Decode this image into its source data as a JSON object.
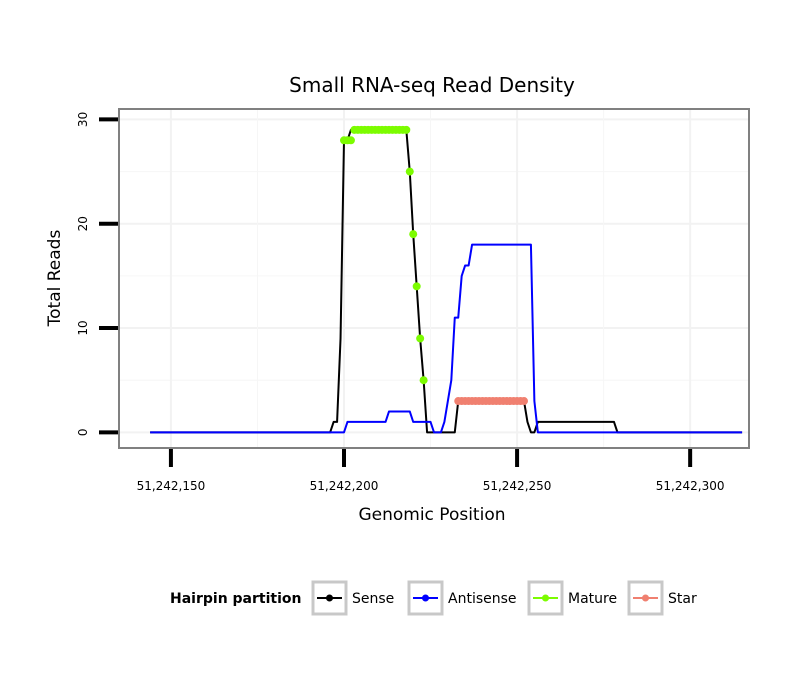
{
  "chart_data": {
    "type": "line",
    "title": "Small RNA-seq Read Density",
    "xlabel": "Genomic Position",
    "ylabel": "Total Reads",
    "xlim": [
      51242135,
      51242317
    ],
    "ylim": [
      -1.5,
      31
    ],
    "xticks": [
      51242150,
      51242200,
      51242250,
      51242300
    ],
    "xtick_labels": [
      "51,242,150",
      "51,242,200",
      "51,242,250",
      "51,242,300"
    ],
    "yticks": [
      0,
      10,
      20,
      30
    ],
    "ytick_labels": [
      "0",
      "10",
      "20",
      "30"
    ],
    "grid": true,
    "legend": {
      "title": "Hairpin partition",
      "position": "bottom",
      "entries": [
        "Sense",
        "Antisense",
        "Mature",
        "Star"
      ]
    },
    "series": [
      {
        "name": "Sense",
        "color": "#000000",
        "marker": "line",
        "points": [
          [
            51242144,
            0
          ],
          [
            51242196,
            0
          ],
          [
            51242197,
            1
          ],
          [
            51242198,
            1
          ],
          [
            51242199,
            9
          ],
          [
            51242200,
            28
          ],
          [
            51242201,
            28
          ],
          [
            51242202,
            29
          ],
          [
            51242218,
            29
          ],
          [
            51242219,
            25
          ],
          [
            51242220,
            19
          ],
          [
            51242221,
            14
          ],
          [
            51242222,
            9
          ],
          [
            51242223,
            5
          ],
          [
            51242224,
            0
          ],
          [
            51242232,
            0
          ],
          [
            51242233,
            3
          ],
          [
            51242252,
            3
          ],
          [
            51242253,
            1
          ],
          [
            51242254,
            0
          ],
          [
            51242255,
            0
          ],
          [
            51242256,
            1
          ],
          [
            51242278,
            1
          ],
          [
            51242279,
            0
          ],
          [
            51242315,
            0
          ]
        ]
      },
      {
        "name": "Antisense",
        "color": "#0000ff",
        "marker": "line",
        "points": [
          [
            51242144,
            0
          ],
          [
            51242200,
            0
          ],
          [
            51242201,
            1
          ],
          [
            51242212,
            1
          ],
          [
            51242213,
            2
          ],
          [
            51242219,
            2
          ],
          [
            51242220,
            1
          ],
          [
            51242225,
            1
          ],
          [
            51242226,
            0
          ],
          [
            51242228,
            0
          ],
          [
            51242229,
            1
          ],
          [
            51242230,
            3
          ],
          [
            51242231,
            5
          ],
          [
            51242232,
            11
          ],
          [
            51242233,
            11
          ],
          [
            51242234,
            15
          ],
          [
            51242235,
            16
          ],
          [
            51242236,
            16
          ],
          [
            51242237,
            18
          ],
          [
            51242254,
            18
          ],
          [
            51242255,
            3
          ],
          [
            51242256,
            0
          ],
          [
            51242315,
            0
          ]
        ]
      },
      {
        "name": "Mature",
        "color": "#7cfc00",
        "marker": "point",
        "points": [
          [
            51242200,
            28
          ],
          [
            51242201,
            28
          ],
          [
            51242202,
            28
          ],
          [
            51242203,
            29
          ],
          [
            51242204,
            29
          ],
          [
            51242205,
            29
          ],
          [
            51242206,
            29
          ],
          [
            51242207,
            29
          ],
          [
            51242208,
            29
          ],
          [
            51242209,
            29
          ],
          [
            51242210,
            29
          ],
          [
            51242211,
            29
          ],
          [
            51242212,
            29
          ],
          [
            51242213,
            29
          ],
          [
            51242214,
            29
          ],
          [
            51242215,
            29
          ],
          [
            51242216,
            29
          ],
          [
            51242217,
            29
          ],
          [
            51242218,
            29
          ],
          [
            51242219,
            25
          ],
          [
            51242220,
            19
          ],
          [
            51242221,
            14
          ],
          [
            51242222,
            9
          ],
          [
            51242223,
            5
          ]
        ]
      },
      {
        "name": "Star",
        "color": "#f08070",
        "marker": "point",
        "points": [
          [
            51242233,
            3
          ],
          [
            51242234,
            3
          ],
          [
            51242235,
            3
          ],
          [
            51242236,
            3
          ],
          [
            51242237,
            3
          ],
          [
            51242238,
            3
          ],
          [
            51242239,
            3
          ],
          [
            51242240,
            3
          ],
          [
            51242241,
            3
          ],
          [
            51242242,
            3
          ],
          [
            51242243,
            3
          ],
          [
            51242244,
            3
          ],
          [
            51242245,
            3
          ],
          [
            51242246,
            3
          ],
          [
            51242247,
            3
          ],
          [
            51242248,
            3
          ],
          [
            51242249,
            3
          ],
          [
            51242250,
            3
          ],
          [
            51242251,
            3
          ],
          [
            51242252,
            3
          ]
        ]
      }
    ]
  }
}
